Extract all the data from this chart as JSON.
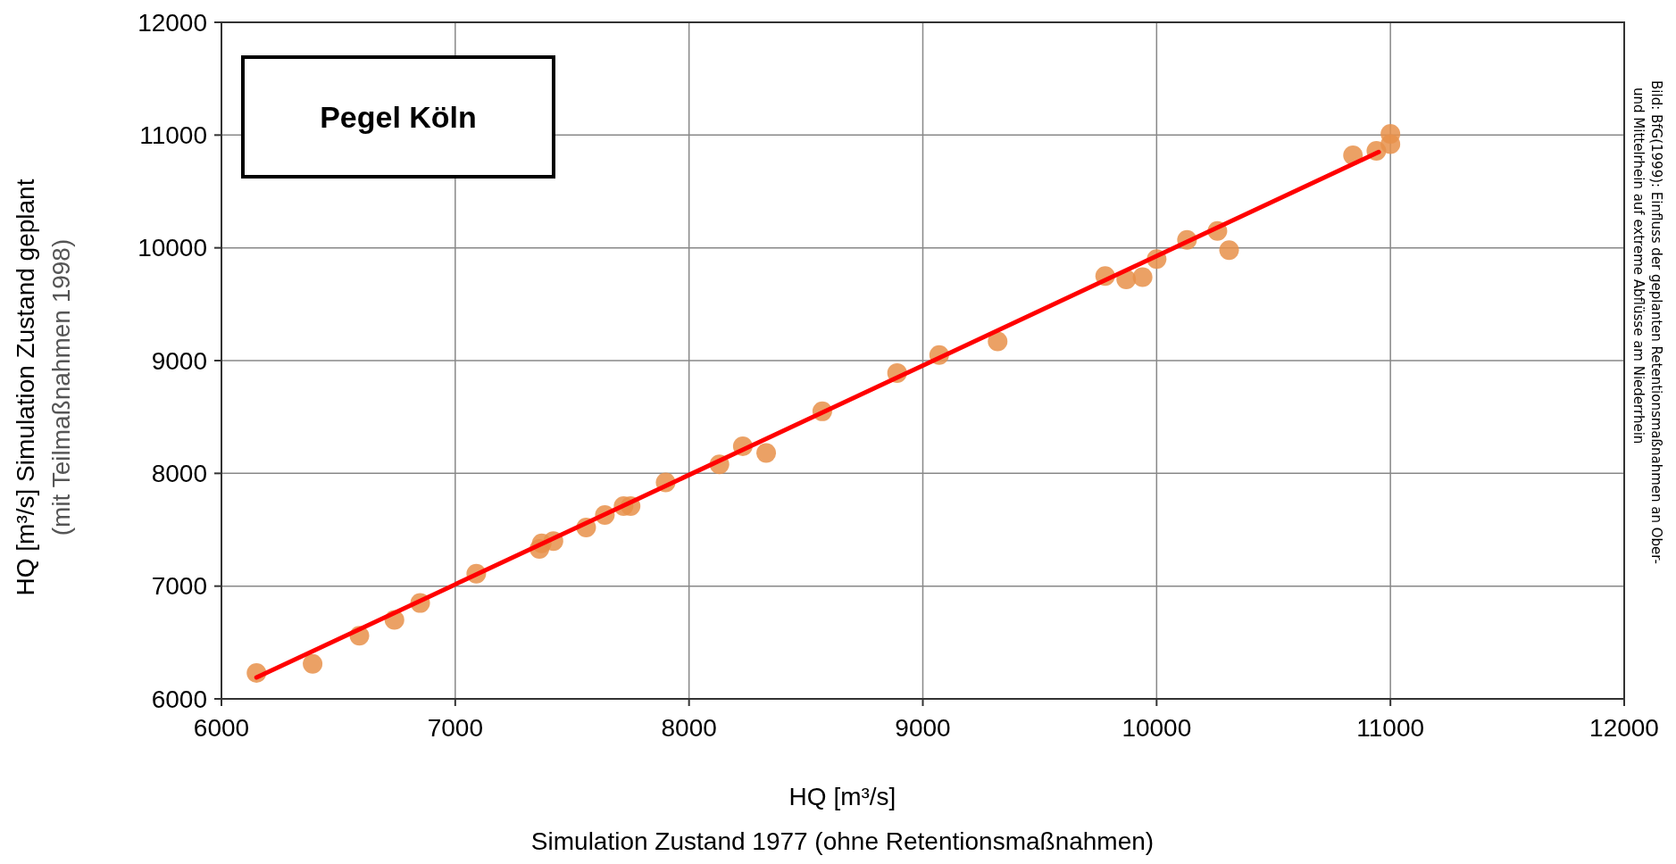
{
  "chart_data": {
    "type": "scatter",
    "title": "Pegel Köln",
    "xlabel": "HQ [m³/s]\nSimulation Zustand 1977 (ohne Retentionsmaßnahmen)",
    "ylabel": "HQ [m³/s] Simulation Zustand geplant\n(mit Teilmaßnahmen 1998)",
    "annotations": [
      "Bild: BfG(1999): Einfluss der geplanten Retentionsmaßnahmen an Ober-\nund Mittelrhein auf extreme Abflüsse am Niederrhein"
    ],
    "xlim": [
      6000,
      12000
    ],
    "xticks": [
      6000,
      7000,
      8000,
      9000,
      10000,
      11000,
      12000
    ],
    "ylim": [
      6000,
      12000
    ],
    "yticks": [
      6000,
      7000,
      8000,
      9000,
      10000,
      11000,
      12000
    ],
    "grid": true,
    "marker": "circle",
    "series": [
      {
        "color": "#e8914a",
        "x": [
          6150,
          6390,
          6590,
          6740,
          6850,
          7090,
          7360,
          7370,
          7420,
          7560,
          7640,
          7720,
          7750,
          7900,
          8130,
          8230,
          8330,
          8570,
          8890,
          9070,
          9320,
          9780,
          9870,
          9940,
          10000,
          10130,
          10260,
          10310,
          10840,
          10940,
          11000,
          11000
        ],
        "values": [
          6230,
          6310,
          6560,
          6700,
          6850,
          7110,
          7330,
          7380,
          7400,
          7520,
          7630,
          7710,
          7710,
          7920,
          8080,
          8240,
          8180,
          8550,
          8890,
          9050,
          9170,
          9750,
          9720,
          9740,
          9900,
          10070,
          10150,
          9980,
          10820,
          10860,
          10920,
          11010
        ]
      },
      {
        "type": "line",
        "color": "#ff0000",
        "marker": "none",
        "line_style": "solid",
        "x": [
          6150,
          10950
        ],
        "values": [
          6190,
          10850
        ]
      }
    ]
  }
}
